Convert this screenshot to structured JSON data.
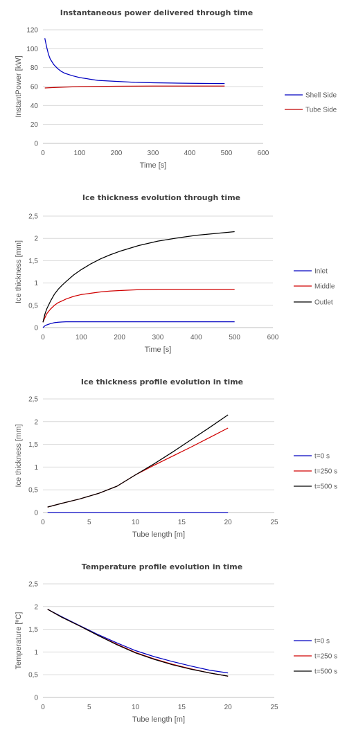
{
  "chart_data": [
    {
      "type": "line",
      "title": "Instantaneous power delivered through time",
      "xlabel": "Time [s]",
      "ylabel": "InstantPower [kW]",
      "xlim": [
        0,
        600
      ],
      "ylim": [
        0,
        120
      ],
      "x_ticks": [
        "0",
        "100",
        "200",
        "300",
        "400",
        "500",
        "600"
      ],
      "y_ticks": [
        "0",
        "20",
        "40",
        "60",
        "80",
        "100",
        "120"
      ],
      "grid": "horizontal",
      "legend": "right",
      "series": [
        {
          "name": "Shell Side",
          "color": "#0000c0",
          "x": [
            5,
            10,
            15,
            20,
            30,
            40,
            50,
            60,
            80,
            100,
            125,
            150,
            200,
            250,
            300,
            350,
            400,
            450,
            495
          ],
          "y": [
            111,
            102,
            94,
            89,
            83,
            79,
            76,
            74,
            71.5,
            69.5,
            68,
            66.5,
            65.5,
            64.5,
            64,
            63.7,
            63.5,
            63.3,
            63.2
          ]
        },
        {
          "name": "Tube Side",
          "color": "#c00000",
          "x": [
            5,
            30,
            60,
            100,
            150,
            200,
            300,
            400,
            495
          ],
          "y": [
            58.5,
            59,
            59.5,
            60,
            60.2,
            60.4,
            60.5,
            60.6,
            60.6
          ]
        }
      ]
    },
    {
      "type": "line",
      "title": "Ice thickness evolution through time",
      "xlabel": "Time [s]",
      "ylabel": "Ice thickness [mm]",
      "xlim": [
        0,
        600
      ],
      "ylim": [
        0,
        2.5
      ],
      "x_ticks": [
        "0",
        "100",
        "200",
        "300",
        "400",
        "500",
        "600"
      ],
      "y_ticks": [
        "0",
        "0,5",
        "1",
        "1,5",
        "2",
        "2,5"
      ],
      "grid": "horizontal",
      "legend": "right",
      "series": [
        {
          "name": "Inlet",
          "color": "#0000c0",
          "x": [
            0,
            5,
            10,
            20,
            30,
            40,
            50,
            60,
            100,
            200,
            300,
            400,
            500
          ],
          "y": [
            0,
            0.04,
            0.06,
            0.09,
            0.11,
            0.12,
            0.125,
            0.13,
            0.13,
            0.13,
            0.13,
            0.13,
            0.13
          ]
        },
        {
          "name": "Middle",
          "color": "#d00000",
          "x": [
            0,
            5,
            10,
            20,
            30,
            40,
            50,
            60,
            80,
            100,
            125,
            150,
            175,
            200,
            250,
            300,
            350,
            400,
            450,
            500
          ],
          "y": [
            0.12,
            0.22,
            0.31,
            0.42,
            0.5,
            0.56,
            0.6,
            0.64,
            0.7,
            0.74,
            0.77,
            0.8,
            0.82,
            0.83,
            0.85,
            0.86,
            0.86,
            0.86,
            0.86,
            0.86
          ]
        },
        {
          "name": "Outlet",
          "color": "#000000",
          "x": [
            0,
            5,
            10,
            20,
            30,
            40,
            50,
            60,
            80,
            100,
            125,
            150,
            175,
            200,
            250,
            300,
            350,
            400,
            450,
            500
          ],
          "y": [
            0.12,
            0.3,
            0.42,
            0.6,
            0.75,
            0.86,
            0.95,
            1.03,
            1.18,
            1.3,
            1.43,
            1.54,
            1.63,
            1.71,
            1.84,
            1.94,
            2.01,
            2.07,
            2.11,
            2.15
          ]
        }
      ]
    },
    {
      "type": "line",
      "title": "Ice thickness profile evolution in time",
      "xlabel": "Tube length [m]",
      "ylabel": "Ice thickness [mm]",
      "xlim": [
        0,
        25
      ],
      "ylim": [
        0,
        2.5
      ],
      "x_ticks": [
        "0",
        "5",
        "10",
        "15",
        "20",
        "25"
      ],
      "y_ticks": [
        "0",
        "0,5",
        "1",
        "1,5",
        "2",
        "2,5"
      ],
      "grid": "horizontal",
      "legend": "right",
      "series": [
        {
          "name": "t=0 s",
          "color": "#0000c0",
          "x": [
            0.5,
            20
          ],
          "y": [
            0,
            0
          ]
        },
        {
          "name": "t=250 s",
          "color": "#d00000",
          "x": [
            0.5,
            2,
            4,
            6,
            8,
            10,
            12,
            14,
            16,
            18,
            20
          ],
          "y": [
            0.12,
            0.2,
            0.3,
            0.42,
            0.58,
            0.83,
            1.04,
            1.24,
            1.44,
            1.65,
            1.86
          ]
        },
        {
          "name": "t=500 s",
          "color": "#000000",
          "x": [
            0.5,
            2,
            4,
            6,
            8,
            10,
            12,
            14,
            16,
            18,
            20
          ],
          "y": [
            0.12,
            0.2,
            0.3,
            0.42,
            0.58,
            0.83,
            1.07,
            1.33,
            1.6,
            1.87,
            2.15
          ]
        }
      ]
    },
    {
      "type": "line",
      "title": "Temperature profile evolution in time",
      "xlabel": "Tube length [m]",
      "ylabel": "Temperature [ºC]",
      "xlim": [
        0,
        25
      ],
      "ylim": [
        0,
        2.5
      ],
      "x_ticks": [
        "0",
        "5",
        "10",
        "15",
        "20",
        "25"
      ],
      "y_ticks": [
        "0",
        "0,5",
        "1",
        "1,5",
        "2",
        "2,5"
      ],
      "grid": "horizontal",
      "legend": "right",
      "series": [
        {
          "name": "t=0 s",
          "color": "#0000c0",
          "x": [
            0.5,
            2,
            4,
            6,
            8,
            10,
            12,
            14,
            16,
            18,
            20
          ],
          "y": [
            1.94,
            1.78,
            1.58,
            1.38,
            1.2,
            1.03,
            0.9,
            0.79,
            0.69,
            0.6,
            0.54
          ]
        },
        {
          "name": "t=250 s",
          "color": "#d00000",
          "x": [
            0.5,
            2,
            4,
            6,
            8,
            10,
            12,
            14,
            16,
            18,
            20
          ],
          "y": [
            1.94,
            1.77,
            1.57,
            1.36,
            1.17,
            0.99,
            0.85,
            0.73,
            0.63,
            0.54,
            0.47
          ]
        },
        {
          "name": "t=500 s",
          "color": "#000000",
          "x": [
            0.5,
            2,
            4,
            6,
            8,
            10,
            12,
            14,
            16,
            18,
            20
          ],
          "y": [
            1.94,
            1.77,
            1.57,
            1.36,
            1.16,
            0.98,
            0.84,
            0.72,
            0.62,
            0.54,
            0.47
          ]
        }
      ]
    }
  ]
}
